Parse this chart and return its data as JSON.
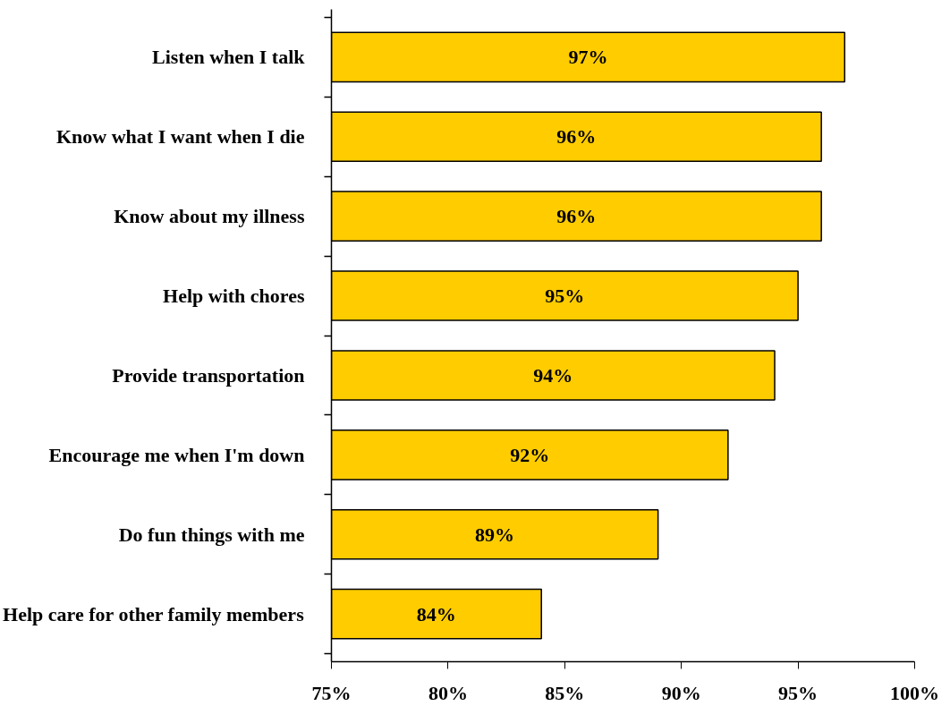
{
  "chart_data": {
    "type": "bar",
    "orientation": "horizontal",
    "categories": [
      "Listen when I talk",
      "Know what I want when I die",
      "Know about my illness",
      "Help with chores",
      "Provide transportation",
      "Encourage me when I'm down",
      "Do fun things with me",
      "Help care for other family members"
    ],
    "values": [
      97,
      96,
      96,
      95,
      94,
      92,
      89,
      84
    ],
    "value_labels": [
      "97%",
      "96%",
      "96%",
      "95%",
      "94%",
      "92%",
      "89%",
      "84%"
    ],
    "color": "#ffcc00",
    "xlim": [
      75,
      100
    ],
    "xticks": [
      {
        "value": 75,
        "label": "75%"
      },
      {
        "value": 80,
        "label": "80%"
      },
      {
        "value": 85,
        "label": "85%"
      },
      {
        "value": 90,
        "label": "90%"
      },
      {
        "value": 95,
        "label": "95%"
      },
      {
        "value": 100,
        "label": "100%"
      }
    ],
    "grid": false
  }
}
